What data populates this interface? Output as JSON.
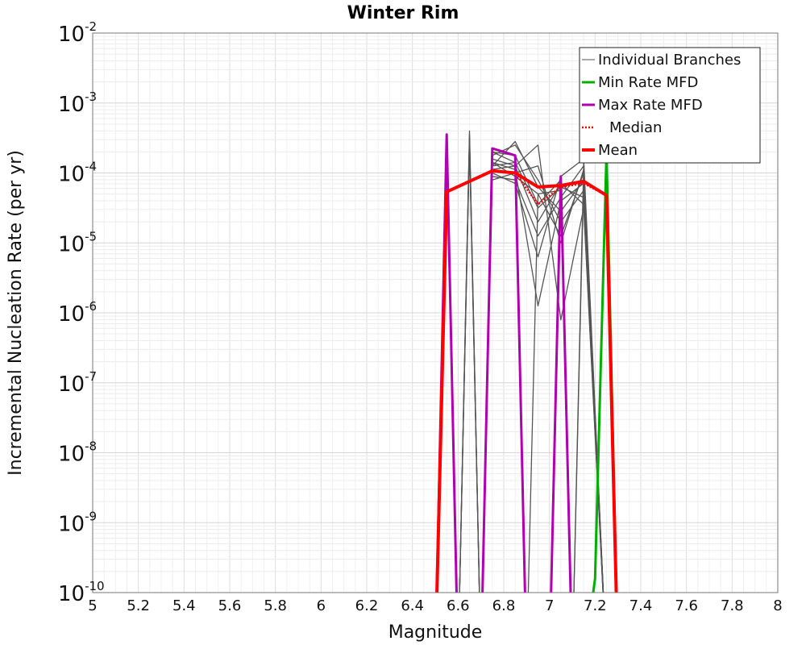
{
  "chart_data": {
    "type": "line",
    "title": "Winter Rim",
    "xlabel": "Magnitude",
    "ylabel": "Incremental Nucleation Rate (per yr)",
    "xlim": [
      5,
      8
    ],
    "ylim_log10": [
      -10,
      -2
    ],
    "y_scale": "log",
    "grid": true,
    "legend_position": "top-right",
    "x_ticks": [
      "5",
      "5.2",
      "5.4",
      "5.6",
      "5.8",
      "6",
      "6.2",
      "6.4",
      "6.6",
      "6.8",
      "7",
      "7.2",
      "7.4",
      "7.6",
      "7.8",
      "8"
    ],
    "y_ticks": [
      {
        "base": "10",
        "exp": "-10"
      },
      {
        "base": "10",
        "exp": "-9"
      },
      {
        "base": "10",
        "exp": "-8"
      },
      {
        "base": "10",
        "exp": "-7"
      },
      {
        "base": "10",
        "exp": "-6"
      },
      {
        "base": "10",
        "exp": "-5"
      },
      {
        "base": "10",
        "exp": "-4"
      },
      {
        "base": "10",
        "exp": "-3"
      },
      {
        "base": "10",
        "exp": "-2"
      }
    ],
    "series": [
      {
        "name": "Individual Branches",
        "color": "#555555",
        "style": "thin-solid",
        "note": "representative subset of many logic-tree branch MFDs (log10 rate)",
        "branches": [
          {
            "x": [
              6.55,
              6.6,
              6.65,
              6.7,
              6.75,
              6.85,
              6.95,
              7.05,
              7.15,
              7.25
            ],
            "log10_y": [
              -11,
              -11,
              -3.45,
              -11,
              -3.7,
              -3.85,
              -4.5,
              -4.2,
              -4.35,
              -11
            ]
          },
          {
            "x": [
              6.55,
              6.6,
              6.65,
              6.7,
              6.75,
              6.85,
              6.95,
              7.05,
              7.15,
              7.25
            ],
            "log10_y": [
              -11,
              -11,
              -3.6,
              -11,
              -3.85,
              -3.95,
              -5.9,
              -4.4,
              -4.15,
              -11
            ]
          },
          {
            "x": [
              6.6,
              6.65,
              6.7,
              6.75,
              6.85,
              6.95,
              7.05,
              7.15,
              7.25
            ],
            "log10_y": [
              -11,
              -3.5,
              -11,
              -3.95,
              -3.9,
              -3.6,
              -6.1,
              -4.5,
              -11
            ]
          },
          {
            "x": [
              6.6,
              6.65,
              6.7,
              6.75,
              6.85,
              6.95,
              7.05,
              7.15,
              7.25
            ],
            "log10_y": [
              -11,
              -3.4,
              -11,
              -4.05,
              -4.1,
              -4.9,
              -4.35,
              -3.9,
              -11
            ]
          },
          {
            "x": [
              6.75,
              6.85,
              6.95,
              7.05,
              7.15,
              7.25
            ],
            "log10_y": [
              -3.75,
              -3.6,
              -4.1,
              -4.7,
              -4.25,
              -11
            ]
          },
          {
            "x": [
              6.75,
              6.85,
              6.95,
              7.05,
              7.15,
              7.25
            ],
            "log10_y": [
              -3.9,
              -3.55,
              -4.2,
              -4.55,
              -4.1,
              -11
            ]
          },
          {
            "x": [
              6.75,
              6.85,
              6.95,
              7.05,
              7.15,
              7.25
            ],
            "log10_y": [
              -4.1,
              -4.0,
              -3.9,
              -5.0,
              -3.95,
              -11
            ]
          },
          {
            "x": [
              6.75,
              6.85,
              6.95,
              7.05,
              7.15,
              7.25
            ],
            "log10_y": [
              -4.0,
              -4.15,
              -5.2,
              -4.05,
              -3.8,
              -11
            ]
          },
          {
            "x": [
              6.75,
              6.85,
              6.95,
              7.05,
              7.15,
              7.25
            ],
            "log10_y": [
              -3.8,
              -3.9,
              -4.7,
              -4.15,
              -4.45,
              -11
            ]
          },
          {
            "x": [
              6.75,
              6.85,
              6.95,
              7.05,
              7.15,
              7.25
            ],
            "log10_y": [
              -3.85,
              -4.05,
              -4.3,
              -4.9,
              -4.0,
              -11
            ]
          },
          {
            "x": [
              6.6,
              6.65,
              6.7,
              6.75,
              6.85,
              6.9,
              6.95,
              7.05,
              7.1,
              7.15
            ],
            "log10_y": [
              -11,
              -3.55,
              -11,
              -3.9,
              -3.85,
              -11,
              -4.3,
              -4.25,
              -11,
              -3.85
            ]
          },
          {
            "x": [
              6.75,
              6.85,
              6.95,
              7.05,
              7.1,
              7.15,
              7.25
            ],
            "log10_y": [
              -3.7,
              -3.75,
              -4.45,
              -4.1,
              -11,
              -4.05,
              -11
            ]
          }
        ]
      },
      {
        "name": "Min Rate MFD",
        "color": "#00b000",
        "style": "solid",
        "x": [
          7.15,
          7.2,
          7.25,
          7.3
        ],
        "log10_y": [
          -11,
          -9.8,
          -3.7,
          -11
        ]
      },
      {
        "name": "Max Rate MFD",
        "color": "#b000b0",
        "style": "solid",
        "x": [
          6.5,
          6.55,
          6.6,
          6.7,
          6.75,
          6.85,
          6.9,
          7.0,
          7.05,
          7.1
        ],
        "log10_y": [
          -11,
          -3.45,
          -11,
          -11,
          -3.65,
          -3.75,
          -11,
          -11,
          -4.05,
          -11
        ]
      },
      {
        "name": "Median",
        "color": "#ff0000",
        "style": "dotted",
        "x": [
          6.5,
          6.55,
          6.75,
          6.85,
          6.95,
          7.05,
          7.15,
          7.25,
          7.3
        ],
        "log10_y": [
          -11,
          -4.27,
          -3.97,
          -4.0,
          -4.45,
          -4.2,
          -4.15,
          -4.32,
          -11
        ]
      },
      {
        "name": "Mean",
        "color": "#ff0000",
        "style": "thick-solid",
        "x": [
          6.5,
          6.55,
          6.75,
          6.85,
          6.95,
          7.05,
          7.15,
          7.25,
          7.3
        ],
        "log10_y": [
          -11,
          -4.27,
          -3.97,
          -4.0,
          -4.2,
          -4.18,
          -4.12,
          -4.32,
          -11
        ]
      }
    ]
  }
}
